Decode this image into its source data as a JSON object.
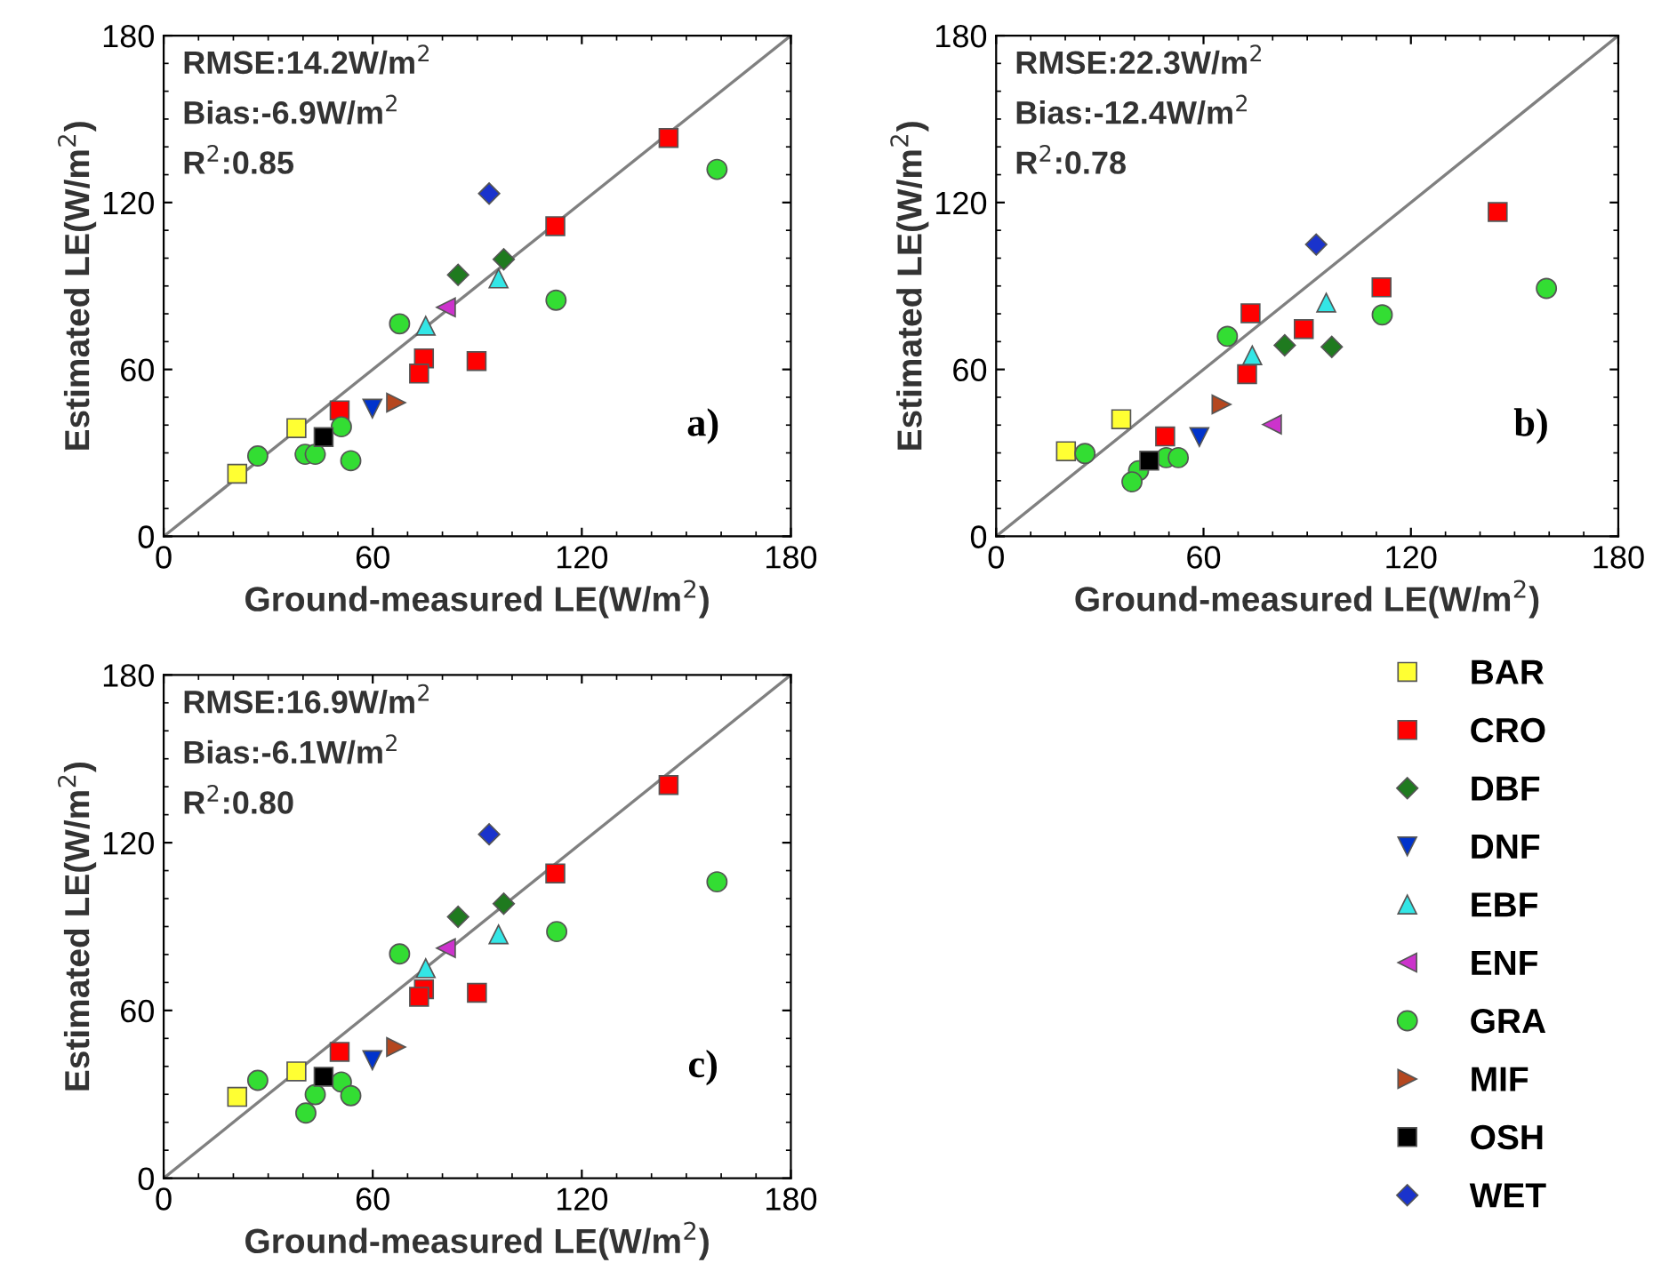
{
  "chart_data": [
    {
      "type": "scatter",
      "xlabel": "Ground-measured LE(W/m$^{2}$)",
      "ylabel": "Estimated LE(W/m$^{2}$)",
      "xlim": [
        0,
        180
      ],
      "ylim": [
        0,
        180
      ],
      "xticks": [
        0,
        60,
        120,
        180
      ],
      "yticks": [
        0,
        60,
        120,
        180
      ],
      "grid": false,
      "legend": "bottom right",
      "annotations": [
        "RMSE:14.2W/m$^{2}$",
        "Bias:-6.9W/m$^{2}$",
        "R$^{2}$:0.85",
        "a)"
      ],
      "series": [
        {
          "name": "BAR",
          "color": "#ffff33",
          "marker": "square",
          "x": [
            21.1,
            38.1
          ],
          "values": [
            22.5,
            38.9
          ]
        },
        {
          "name": "CRO",
          "color": "#ff0000",
          "marker": "square",
          "x": [
            144.9,
            112.4,
            74.7,
            73.3,
            89.8,
            50.5
          ],
          "values": [
            143.2,
            111.5,
            64.0,
            58.5,
            63.0,
            45.3
          ]
        },
        {
          "name": "DBF",
          "color": "#1f7a1f",
          "marker": "diamond",
          "x": [
            84.5,
            97.6
          ],
          "values": [
            94.0,
            99.6
          ]
        },
        {
          "name": "DNF",
          "color": "#0033cc",
          "marker": "triangle-down",
          "x": [
            59.9
          ],
          "values": [
            45.9
          ]
        },
        {
          "name": "EBF",
          "color": "#33e6e6",
          "marker": "triangle",
          "x": [
            75.2,
            96.1
          ],
          "values": [
            75.7,
            92.7
          ]
        },
        {
          "name": "ENF",
          "color": "#cc33cc",
          "marker": "triangle-left",
          "x": [
            81.0
          ],
          "values": [
            82.3
          ]
        },
        {
          "name": "GRA",
          "color": "#33dd33",
          "marker": "circle",
          "x": [
            158.8,
            112.6,
            67.7,
            51.0,
            27.0,
            40.6,
            43.5,
            53.7
          ],
          "values": [
            131.9,
            84.9,
            76.4,
            39.4,
            28.9,
            29.5,
            29.5,
            27.2
          ]
        },
        {
          "name": "MIF",
          "color": "#b5471f",
          "marker": "triangle-right",
          "x": [
            66.7
          ],
          "values": [
            48.1
          ]
        },
        {
          "name": "OSH",
          "color": "#000000",
          "marker": "square",
          "x": [
            45.9
          ],
          "values": [
            35.7
          ]
        },
        {
          "name": "WET",
          "color": "#1a33cc",
          "marker": "diamond",
          "x": [
            93.4
          ],
          "values": [
            123.2
          ]
        },
        {
          "type": "line",
          "color": "#808080",
          "marker": "none",
          "x": [
            0,
            180
          ],
          "values": [
            0,
            180
          ]
        }
      ]
    },
    {
      "type": "scatter",
      "xlabel": "Ground-measured LE(W/m$^{2}$)",
      "ylabel": "Estimated LE(W/m$^{2}$)",
      "xlim": [
        0,
        180
      ],
      "ylim": [
        0,
        180
      ],
      "xticks": [
        0,
        60,
        120,
        180
      ],
      "yticks": [
        0,
        60,
        120,
        180
      ],
      "grid": false,
      "legend": false,
      "annotations": [
        "RMSE:22.3W/m$^{2}$",
        "Bias:-12.4W/m$^{2}$",
        "R$^{2}$:0.78",
        "b)"
      ],
      "series": [
        {
          "color": "#ffff33",
          "marker": "square",
          "x": [
            20.2,
            36.2
          ],
          "values": [
            30.6,
            42.1
          ]
        },
        {
          "color": "#ff0000",
          "marker": "square",
          "x": [
            145.1,
            111.5,
            73.6,
            89.0,
            72.6,
            48.9
          ],
          "values": [
            116.6,
            89.5,
            80.2,
            74.5,
            58.3,
            35.9
          ]
        },
        {
          "color": "#1f7a1f",
          "marker": "diamond",
          "x": [
            83.5,
            97.1
          ],
          "values": [
            68.7,
            68.1
          ]
        },
        {
          "color": "#0033cc",
          "marker": "triangle-down",
          "x": [
            58.8
          ],
          "values": [
            35.7
          ]
        },
        {
          "color": "#33e6e6",
          "marker": "triangle",
          "x": [
            95.5,
            74.1
          ],
          "values": [
            84.0,
            65.1
          ]
        },
        {
          "color": "#cc33cc",
          "marker": "triangle-left",
          "x": [
            79.8
          ],
          "values": [
            40.2
          ]
        },
        {
          "color": "#33dd33",
          "marker": "circle",
          "x": [
            159.2,
            111.7,
            66.9,
            25.7,
            41.2,
            39.3,
            49.2,
            52.7
          ],
          "values": [
            89.1,
            79.6,
            71.9,
            29.8,
            23.6,
            19.6,
            28.3,
            28.3
          ]
        },
        {
          "color": "#b5471f",
          "marker": "triangle-right",
          "x": [
            65.2
          ],
          "values": [
            47.4
          ]
        },
        {
          "color": "#000000",
          "marker": "square",
          "x": [
            44.3
          ],
          "values": [
            27.2
          ]
        },
        {
          "color": "#1a33cc",
          "marker": "diamond",
          "x": [
            92.6
          ],
          "values": [
            104.9
          ]
        },
        {
          "type": "line",
          "color": "#808080",
          "marker": "none",
          "x": [
            0,
            180
          ],
          "values": [
            0,
            180
          ]
        }
      ]
    },
    {
      "type": "scatter",
      "xlabel": "Ground-measured LE(W/m$^{2}$)",
      "ylabel": "Estimated LE(W/m$^{2}$)",
      "xlim": [
        0,
        180
      ],
      "ylim": [
        0,
        180
      ],
      "xticks": [
        0,
        60,
        120,
        180
      ],
      "yticks": [
        0,
        60,
        120,
        180
      ],
      "grid": false,
      "legend": false,
      "annotations": [
        "RMSE:16.9W/m$^{2}$",
        "Bias:-6.1W/m$^{2}$",
        "R$^{2}$:0.80",
        "c)"
      ],
      "series": [
        {
          "color": "#ffff33",
          "marker": "square",
          "x": [
            21.1,
            38.1
          ],
          "values": [
            29.1,
            38.2
          ]
        },
        {
          "color": "#ff0000",
          "marker": "square",
          "x": [
            144.9,
            112.4,
            74.7,
            73.3,
            89.9,
            50.5
          ],
          "values": [
            140.6,
            109.0,
            67.6,
            64.9,
            66.3,
            45.2
          ]
        },
        {
          "color": "#1f7a1f",
          "marker": "diamond",
          "x": [
            84.5,
            97.6
          ],
          "values": [
            93.5,
            98.2
          ]
        },
        {
          "color": "#0033cc",
          "marker": "triangle-down",
          "x": [
            59.9
          ],
          "values": [
            42.2
          ]
        },
        {
          "color": "#33e6e6",
          "marker": "triangle",
          "x": [
            75.2,
            96.1
          ],
          "values": [
            75.1,
            87.2
          ]
        },
        {
          "color": "#cc33cc",
          "marker": "triangle-left",
          "x": [
            81.0
          ],
          "values": [
            82.3
          ]
        },
        {
          "color": "#33dd33",
          "marker": "circle",
          "x": [
            158.8,
            112.8,
            67.7,
            27.0,
            51.0,
            43.5,
            53.7,
            40.8
          ],
          "values": [
            106.0,
            88.2,
            80.2,
            35.0,
            34.4,
            29.9,
            29.5,
            23.3
          ]
        },
        {
          "color": "#b5471f",
          "marker": "triangle-right",
          "x": [
            66.7
          ],
          "values": [
            46.9
          ]
        },
        {
          "color": "#000000",
          "marker": "square",
          "x": [
            45.9
          ],
          "values": [
            36.3
          ]
        },
        {
          "color": "#1a33cc",
          "marker": "diamond",
          "x": [
            93.4
          ],
          "values": [
            123.0
          ]
        },
        {
          "type": "line",
          "color": "#808080",
          "marker": "none",
          "x": [
            0,
            180
          ],
          "values": [
            0,
            180
          ]
        }
      ]
    }
  ]
}
